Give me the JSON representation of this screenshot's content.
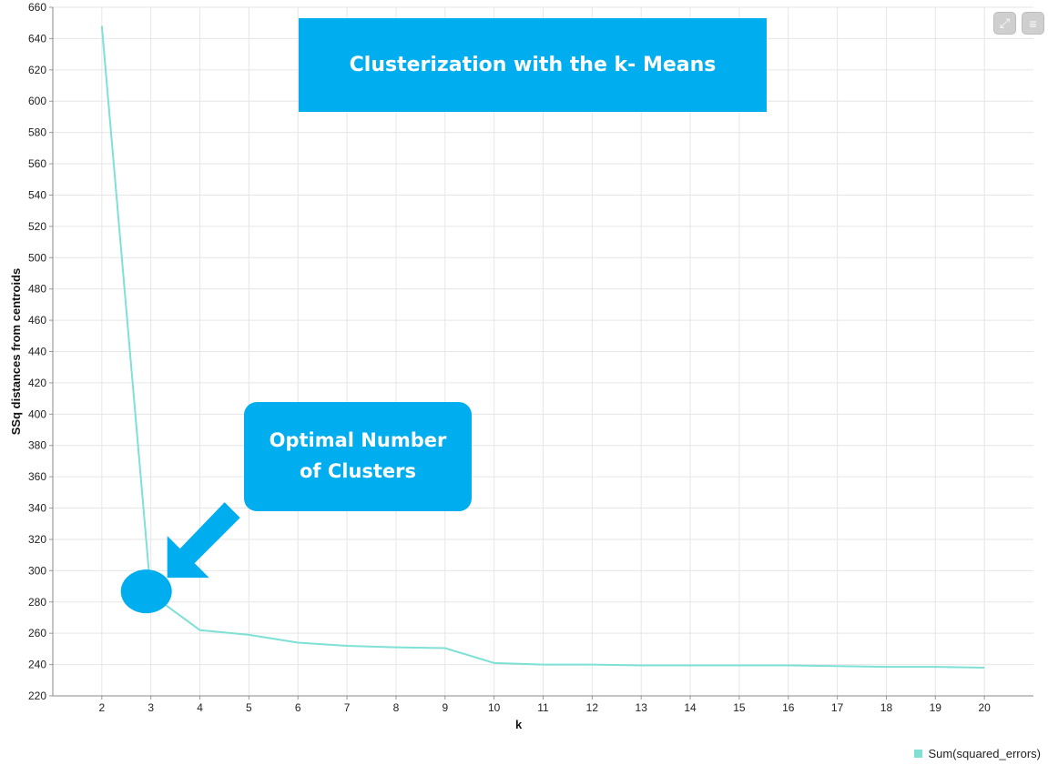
{
  "title_box": {
    "text": "Clusterization with the k- Means"
  },
  "callout": {
    "text": "Optimal Number\nof Clusters"
  },
  "toolbar": {
    "expand_icon": "expand-icon",
    "menu_icon": "hamburger-menu-icon"
  },
  "colors": {
    "line": "#7fe0d6",
    "accent": "#00aeef",
    "grid": "#e6e6e6"
  },
  "chart_data": {
    "type": "line",
    "xlabel": "k",
    "ylabel": "SSq distances from centroids",
    "x": [
      2,
      3,
      4,
      5,
      6,
      7,
      8,
      9,
      10,
      11,
      12,
      13,
      14,
      15,
      16,
      17,
      18,
      19,
      20
    ],
    "xlim": [
      1,
      21
    ],
    "ylim": [
      220,
      660
    ],
    "yticks": [
      220,
      240,
      260,
      280,
      300,
      320,
      340,
      360,
      380,
      400,
      420,
      440,
      460,
      480,
      500,
      520,
      540,
      560,
      580,
      600,
      620,
      640,
      660
    ],
    "grid": true,
    "legend_position": "bottom-right",
    "series": [
      {
        "name": "Sum(squared_errors)",
        "values": [
          648,
          285,
          262,
          259,
          254,
          252,
          251,
          250.5,
          241,
          240,
          240,
          239.5,
          239.5,
          239.5,
          239.5,
          239,
          238.5,
          238.5,
          238
        ]
      }
    ],
    "highlight": {
      "x": 3,
      "y": 285
    }
  }
}
